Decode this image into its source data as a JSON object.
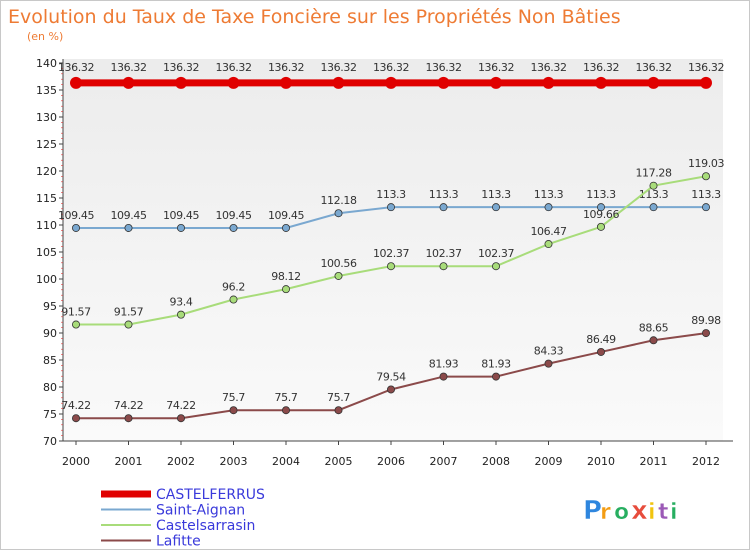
{
  "chart_data": {
    "type": "line",
    "title": "Evolution du Taux de Taxe Foncière sur les Propriétés Non Bâties",
    "subtitle": "(en %)",
    "x": [
      "2000",
      "2001",
      "2002",
      "2003",
      "2004",
      "2005",
      "2006",
      "2007",
      "2008",
      "2009",
      "2010",
      "2011",
      "2012"
    ],
    "ylim": [
      70,
      140
    ],
    "yticks": [
      70,
      75,
      80,
      85,
      90,
      95,
      100,
      105,
      110,
      115,
      120,
      125,
      130,
      135,
      140
    ],
    "grid": false,
    "legend_position": "bottom-left",
    "series": [
      {
        "name": "CASTELFERRUS",
        "color": "#e00000",
        "values": [
          136.32,
          136.32,
          136.32,
          136.32,
          136.32,
          136.32,
          136.32,
          136.32,
          136.32,
          136.32,
          136.32,
          136.32,
          136.32
        ],
        "labels": [
          "136.32",
          "136.32",
          "136.32",
          "136.32",
          "136.32",
          "136.32",
          "136.32",
          "136.32",
          "136.32",
          "136.32",
          "136.32",
          "136.32",
          "136.32"
        ]
      },
      {
        "name": "Saint-Aignan",
        "color": "#7aa8d0",
        "values": [
          109.45,
          109.45,
          109.45,
          109.45,
          109.45,
          112.18,
          113.3,
          113.3,
          113.3,
          113.3,
          113.3,
          113.3,
          113.3
        ],
        "labels": [
          "109.45",
          "109.45",
          "109.45",
          "109.45",
          "109.45",
          "112.18",
          "113.3",
          "113.3",
          "113.3",
          "113.3",
          "113.3",
          "113.3",
          "113.3"
        ]
      },
      {
        "name": "Castelsarrasin",
        "color": "#a8dc7a",
        "values": [
          91.57,
          91.57,
          93.4,
          96.2,
          98.12,
          100.56,
          102.37,
          102.37,
          102.37,
          106.47,
          109.66,
          117.28,
          119.03
        ],
        "labels": [
          "91.57",
          "91.57",
          "93.4",
          "96.2",
          "98.12",
          "100.56",
          "102.37",
          "102.37",
          "102.37",
          "106.47",
          "109.66",
          "117.28",
          "119.03"
        ]
      },
      {
        "name": "Lafitte",
        "color": "#8b4a4a",
        "values": [
          74.22,
          74.22,
          74.22,
          75.7,
          75.7,
          75.7,
          79.54,
          81.93,
          81.93,
          84.33,
          86.49,
          88.65,
          89.98
        ],
        "labels": [
          "74.22",
          "74.22",
          "74.22",
          "75.7",
          "75.7",
          "75.7",
          "79.54",
          "81.93",
          "81.93",
          "84.33",
          "86.49",
          "88.65",
          "89.98"
        ]
      }
    ]
  },
  "branding": {
    "logo_letters": [
      "P",
      "r",
      "o",
      "x",
      "i",
      "t",
      "i"
    ],
    "logo_colors": [
      "#2e86de",
      "#f39c12",
      "#27ae60",
      "#e74c3c",
      "#f1c40f",
      "#9b59b6",
      "#27ae60"
    ]
  }
}
